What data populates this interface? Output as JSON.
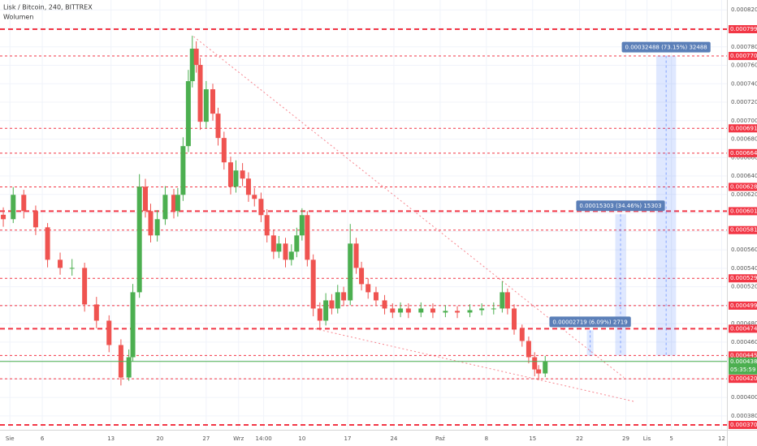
{
  "chart_data": {
    "type": "candlestick",
    "title": "Lisk / Bitcoin, 240, BITTREX",
    "subtitle": "Wolumen",
    "up_color": "#4caf50",
    "down_color": "#ef5350",
    "level_color": "#f23645",
    "x": [
      0,
      1.5,
      3.1,
      4.9,
      6.7,
      8.6,
      10.4,
      12.3,
      14.1,
      16,
      17.8,
      19,
      19.6,
      20.6,
      21.5,
      22.3,
      23.3,
      24.5,
      25.8,
      26.4,
      27.2,
      28,
      28.6,
      29.2,
      29.8,
      30.7,
      31.7,
      32.5,
      33.4,
      34.4,
      35.2,
      36.2,
      37.1,
      38,
      39,
      39.9,
      40.9,
      41.7,
      42.7,
      43.6,
      44.4,
      45.2,
      46,
      46.9,
      47.9,
      48.8,
      49.7,
      50.6,
      51.5,
      52.5,
      53.4,
      54.2,
      55.2,
      56.4,
      57.7,
      58.9,
      60.1,
      61.3,
      63.2,
      65,
      66.9,
      68.7,
      70.6,
      72.4,
      74.2,
      75.5,
      76.3,
      77.3,
      78.5,
      79.5,
      80.4,
      81,
      82
    ],
    "open": [
      0.000598,
      0.0005932,
      0.0006196,
      0.000602,
      0.0005844,
      0.0005492,
      0.0005404,
      0.0005404,
      0.0005008,
      0.0004832,
      0.0004568,
      0.0004216,
      0.0004436,
      0.000514,
      0.0006284,
      0.000602,
      0.0005756,
      0.0005932,
      0.0006196,
      0.000602,
      0.0006196,
      0.0006724,
      0.0007428,
      0.000778,
      0.0007604,
      0.0006988,
      0.000734,
      0.0007076,
      0.0006812,
      0.0006548,
      0.0006284,
      0.000646,
      0.0006372,
      0.0006196,
      0.0006152,
      0.0005976,
      0.0005756,
      0.000558,
      0.0005668,
      0.0005492,
      0.000558,
      0.0005756,
      0.0005976,
      0.0005492,
      0.0004964,
      0.0004832,
      0.0005052,
      0.0004964,
      0.000514,
      0.0005052,
      0.0005668,
      0.0005404,
      0.0005228,
      0.000514,
      0.0005052,
      0.0004964,
      0.000492,
      0.0004964,
      0.000492,
      0.0004964,
      0.000492,
      0.0004938,
      0.000492,
      0.0004946,
      0.0004964,
      0.0004964,
      0.000514,
      0.0004964,
      0.0004744,
      0.0004612,
      0.0004436,
      0.0004304,
      0.000426
    ],
    "high": [
      0.000606,
      0.000628,
      0.000625,
      0.000608,
      0.000589,
      0.000557,
      0.00055,
      0.000546,
      0.000509,
      0.000489,
      0.000463,
      0.000452,
      0.000523,
      0.000642,
      0.000637,
      0.00061,
      0.000603,
      0.000629,
      0.000626,
      0.000627,
      0.000682,
      0.000755,
      0.000792,
      0.000786,
      0.000768,
      0.000743,
      0.00074,
      0.000714,
      0.000688,
      0.000661,
      0.000657,
      0.000654,
      0.000644,
      0.000627,
      0.000622,
      0.000604,
      0.000582,
      0.000575,
      0.000573,
      0.000566,
      0.000584,
      0.000605,
      0.000602,
      0.000555,
      0.000503,
      0.000513,
      0.000512,
      0.000522,
      0.00052,
      0.000588,
      0.000573,
      0.000547,
      0.000529,
      0.00052,
      0.000511,
      0.000502,
      0.000503,
      0.000502,
      0.000503,
      0.000502,
      0.0005,
      0.000499,
      0.000501,
      0.000502,
      0.000503,
      0.000526,
      0.000518,
      0.000501,
      0.000479,
      0.000466,
      0.000449,
      0.000435,
      0.000445
    ],
    "low": [
      0.000585,
      0.000589,
      0.000594,
      0.000576,
      0.000541,
      0.000533,
      0.000532,
      0.000493,
      0.000475,
      0.000449,
      0.000413,
      0.000418,
      0.000439,
      0.000508,
      0.000595,
      0.000568,
      0.000569,
      0.000587,
      0.000594,
      0.000596,
      0.000613,
      0.000666,
      0.000736,
      0.000752,
      0.00069,
      0.000692,
      0.0007,
      0.000673,
      0.000647,
      0.00062,
      0.000622,
      0.000629,
      0.000612,
      0.000607,
      0.00059,
      0.000568,
      0.00055,
      0.000551,
      0.000541,
      0.000543,
      0.000552,
      0.00057,
      0.000542,
      0.000488,
      0.000475,
      0.000478,
      0.00049,
      0.000491,
      0.000499,
      0.0005,
      0.000534,
      0.000516,
      0.000507,
      0.000499,
      0.00049,
      0.000486,
      0.000487,
      0.000486,
      0.000487,
      0.000486,
      0.000487,
      0.000486,
      0.000487,
      0.000489,
      0.00049,
      0.000492,
      0.00049,
      0.000468,
      0.000455,
      0.000437,
      0.000423,
      0.000419,
      0.000422
    ],
    "close": [
      0.0005932,
      0.0006196,
      0.000602,
      0.0005844,
      0.0005492,
      0.0005404,
      0.0005404,
      0.0005008,
      0.0004832,
      0.0004568,
      0.0004216,
      0.0004436,
      0.000514,
      0.0006284,
      0.000602,
      0.0005756,
      0.0005932,
      0.0006196,
      0.000602,
      0.0006196,
      0.0006724,
      0.0007428,
      0.000778,
      0.0007604,
      0.0006988,
      0.000734,
      0.0007076,
      0.0006812,
      0.0006548,
      0.0006284,
      0.000646,
      0.0006372,
      0.0006196,
      0.0006152,
      0.0005976,
      0.0005756,
      0.000558,
      0.0005668,
      0.0005492,
      0.000558,
      0.0005756,
      0.0005976,
      0.0005492,
      0.0004964,
      0.0004832,
      0.0005052,
      0.0004964,
      0.000514,
      0.0005052,
      0.0005668,
      0.0005404,
      0.0005228,
      0.000514,
      0.0005052,
      0.0004964,
      0.000492,
      0.0004964,
      0.000492,
      0.0004964,
      0.000492,
      0.0004938,
      0.000492,
      0.0004946,
      0.0004964,
      0.0004964,
      0.000514,
      0.0004964,
      0.0004744,
      0.0004612,
      0.0004436,
      0.0004304,
      0.000426,
      0.00043897
    ],
    "xlim": [
      -0.5,
      109.5
    ],
    "ylim": [
      0.00036495,
      0.00083076
    ],
    "xticks": [
      {
        "value": 1.0,
        "label": "Sie"
      },
      {
        "value": 5.9,
        "label": "6"
      },
      {
        "value": 16.3,
        "label": "13"
      },
      {
        "value": 23.7,
        "label": "20"
      },
      {
        "value": 30.7,
        "label": "27"
      },
      {
        "value": 35.6,
        "label": "Wrz"
      },
      {
        "value": 39.4,
        "label": "14:00"
      },
      {
        "value": 45.2,
        "label": "10"
      },
      {
        "value": 52.1,
        "label": "17"
      },
      {
        "value": 59.1,
        "label": "24"
      },
      {
        "value": 66.1,
        "label": "Paź"
      },
      {
        "value": 73.1,
        "label": "8"
      },
      {
        "value": 80.1,
        "label": "15"
      },
      {
        "value": 87.2,
        "label": "22"
      },
      {
        "value": 94.2,
        "label": "29"
      },
      {
        "value": 97.4,
        "label": "Lis"
      },
      {
        "value": 101.1,
        "label": "5"
      },
      {
        "value": 108.7,
        "label": "12"
      }
    ],
    "yticks": [
      {
        "value": 0.00038,
        "label": "0.00038000"
      },
      {
        "value": 0.0004,
        "label": "0.00040000"
      },
      {
        "value": 0.00042,
        "label": "0.00042000"
      },
      {
        "value": 0.00044,
        "label": "0.00044000"
      },
      {
        "value": 0.00046,
        "label": "0.00046000"
      },
      {
        "value": 0.00048,
        "label": "0.00048000"
      },
      {
        "value": 0.0005,
        "label": "0.00050000"
      },
      {
        "value": 0.00052,
        "label": "0.00052000"
      },
      {
        "value": 0.00054,
        "label": "0.00054000"
      },
      {
        "value": 0.00056,
        "label": "0.00056000"
      },
      {
        "value": 0.00058,
        "label": "0.00058000"
      },
      {
        "value": 0.0006,
        "label": "0.00060000"
      },
      {
        "value": 0.00062,
        "label": "0.00062000"
      },
      {
        "value": 0.00064,
        "label": "0.00064000"
      },
      {
        "value": 0.00066,
        "label": "0.00066000"
      },
      {
        "value": 0.00068,
        "label": "0.00068000"
      },
      {
        "value": 0.0007,
        "label": "0.00070000"
      },
      {
        "value": 0.00072,
        "label": "0.00072000"
      },
      {
        "value": 0.00074,
        "label": "0.00074000"
      },
      {
        "value": 0.00076,
        "label": "0.00076000"
      },
      {
        "value": 0.00078,
        "label": "0.00078000"
      },
      {
        "value": 0.0008,
        "label": "0.00080000"
      },
      {
        "value": 0.00082,
        "label": "0.00082000"
      }
    ],
    "grid": true,
    "levels": [
      {
        "value": 0.00079912,
        "label": "0.00079912",
        "width": 2
      },
      {
        "value": 0.00077009,
        "label": "0.00077009",
        "width": 1
      },
      {
        "value": 0.00069164,
        "label": "0.00069164",
        "width": 1
      },
      {
        "value": 0.0006648,
        "label": "0.00066480",
        "width": 1
      },
      {
        "value": 0.0006282,
        "label": "0.00062820",
        "width": 1
      },
      {
        "value": 0.00060187,
        "label": "0.00060187",
        "width": 2
      },
      {
        "value": 0.00058139,
        "label": "0.00058139",
        "width": 1
      },
      {
        "value": 0.0005291,
        "label": "0.00052910",
        "width": 1
      },
      {
        "value": 0.00049952,
        "label": "0.00049952",
        "width": 1
      },
      {
        "value": 0.0004745,
        "label": "0.00047450",
        "width": 2
      },
      {
        "value": 0.00044552,
        "label": "0.00044552",
        "width": 1
      },
      {
        "value": 0.00042017,
        "label": "0.00042017",
        "width": 1
      },
      {
        "value": 0.00037022,
        "label": "0.00037022",
        "width": 2
      }
    ],
    "current_price": {
      "value": 0.00043897,
      "label": "0.00043897",
      "countdown": "05:35:59",
      "color": "#4caf50"
    },
    "measures": [
      {
        "label": "0.00002719 (6.09%) 2719",
        "from": 0.00044552,
        "to": 0.00047271,
        "x": [
          88.3,
          89.3
        ]
      },
      {
        "label": "0.00015303 (34.46%) 15303",
        "from": 0.00044552,
        "to": 0.00059855,
        "x": [
          92.6,
          94.2
        ]
      },
      {
        "label": "0.00032488 (73.15%) 32488",
        "from": 0.00044552,
        "to": 0.0007704,
        "x": [
          98.8,
          101.8
        ]
      }
    ],
    "trendlines": [
      {
        "x": [
          28.8,
          93.9
        ],
        "y": [
          0.0007912,
          0.0004216
        ]
      },
      {
        "x": [
          47.2,
          95.7
        ],
        "y": [
          0.0004744,
          0.0003952
        ]
      }
    ]
  }
}
